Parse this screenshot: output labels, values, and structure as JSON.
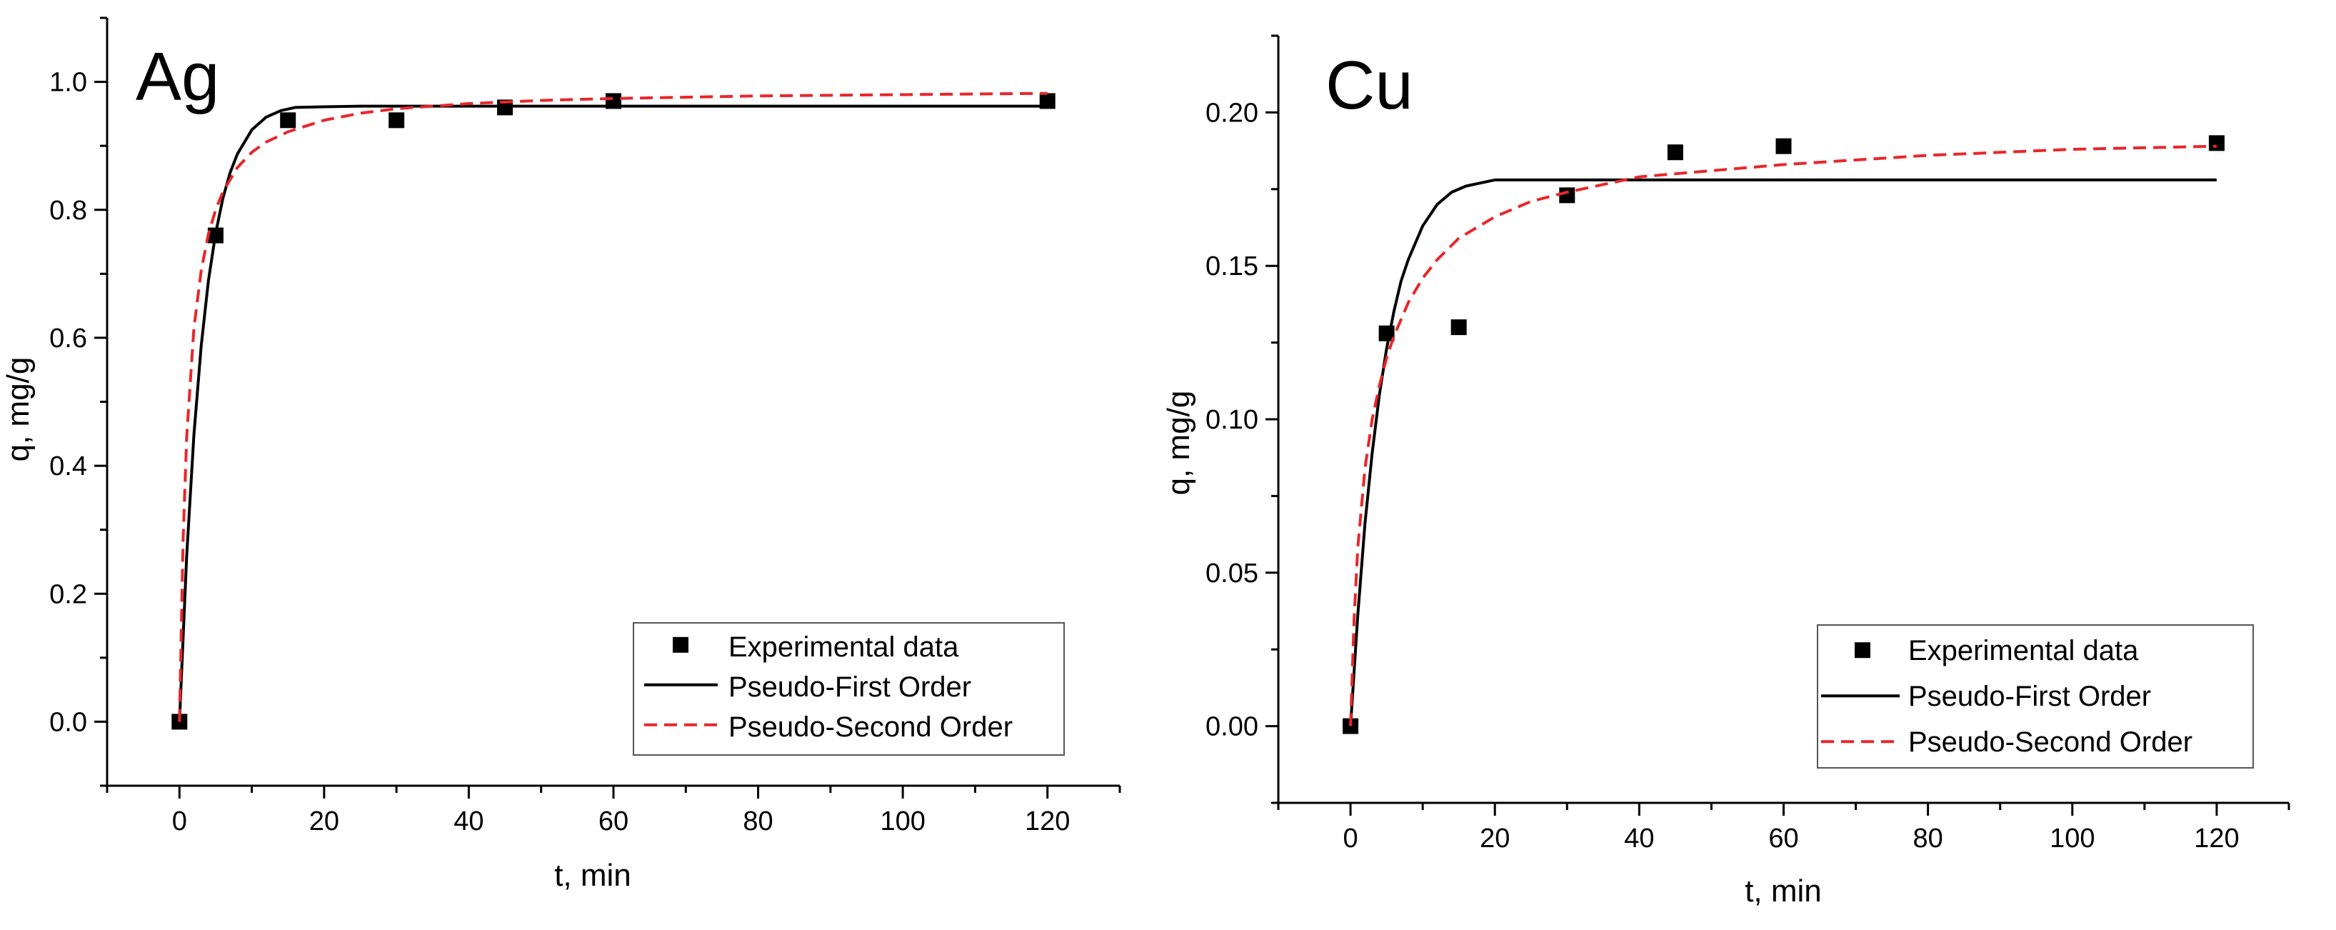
{
  "colors": {
    "experimental": "#000000",
    "first_order": "#000000",
    "second_order": "#e8262a",
    "axis": "#000000",
    "legend_border": "#555555"
  },
  "chart_data": [
    {
      "type": "scatter",
      "title": "Ag",
      "xlabel": "t, min",
      "ylabel": "q, mg/g",
      "xlim": [
        -10,
        130
      ],
      "ylim": [
        -0.1,
        1.1
      ],
      "xticks": [
        0,
        20,
        40,
        60,
        80,
        100,
        120
      ],
      "yticks": [
        0.0,
        0.2,
        0.4,
        0.6,
        0.8,
        1.0
      ],
      "ytick_decimals": 1,
      "legend": "bottom-right",
      "series": [
        {
          "name": "Experimental data",
          "kind": "markers",
          "x": [
            0,
            5,
            15,
            30,
            45,
            60,
            120
          ],
          "y": [
            0.0,
            0.76,
            0.94,
            0.94,
            0.96,
            0.97,
            0.97
          ]
        },
        {
          "name": "Pseudo-First Order",
          "kind": "solid-line",
          "x": [
            0,
            1,
            2,
            3,
            4,
            5,
            6,
            7,
            8,
            10,
            12,
            14,
            16,
            20,
            25,
            30,
            40,
            60,
            80,
            100,
            120
          ],
          "y": [
            0.0,
            0.259,
            0.448,
            0.587,
            0.689,
            0.763,
            0.818,
            0.858,
            0.887,
            0.925,
            0.945,
            0.955,
            0.96,
            0.961,
            0.962,
            0.962,
            0.962,
            0.962,
            0.962,
            0.962,
            0.962
          ]
        },
        {
          "name": "Pseudo-Second Order",
          "kind": "dashed-line",
          "x": [
            0,
            0.5,
            1,
            2,
            3,
            4,
            5,
            6,
            8,
            10,
            12,
            15,
            20,
            25,
            30,
            40,
            50,
            60,
            80,
            100,
            120
          ],
          "y": [
            0.0,
            0.285,
            0.445,
            0.615,
            0.705,
            0.762,
            0.8,
            0.828,
            0.866,
            0.89,
            0.906,
            0.922,
            0.94,
            0.951,
            0.958,
            0.966,
            0.971,
            0.974,
            0.978,
            0.98,
            0.982
          ]
        }
      ]
    },
    {
      "type": "scatter",
      "title": "Cu",
      "xlabel": "t, min",
      "ylabel": "q, mg/g",
      "xlim": [
        -10,
        130
      ],
      "ylim": [
        -0.025,
        0.225
      ],
      "xticks": [
        0,
        20,
        40,
        60,
        80,
        100,
        120
      ],
      "yticks": [
        0.0,
        0.05,
        0.1,
        0.15,
        0.2
      ],
      "ytick_decimals": 2,
      "legend": "bottom-right",
      "series": [
        {
          "name": "Experimental data",
          "kind": "markers",
          "x": [
            0,
            5,
            15,
            30,
            45,
            60,
            120
          ],
          "y": [
            0.0,
            0.128,
            0.13,
            0.173,
            0.187,
            0.189,
            0.19
          ]
        },
        {
          "name": "Pseudo-First Order",
          "kind": "solid-line",
          "x": [
            0,
            1,
            2,
            3,
            4,
            5,
            6,
            7,
            8,
            10,
            12,
            14,
            16,
            20,
            25,
            30,
            40,
            60,
            80,
            100,
            120
          ],
          "y": [
            0.0,
            0.036,
            0.066,
            0.089,
            0.108,
            0.123,
            0.135,
            0.145,
            0.152,
            0.163,
            0.17,
            0.174,
            0.176,
            0.178,
            0.178,
            0.178,
            0.178,
            0.178,
            0.178,
            0.178,
            0.178
          ]
        },
        {
          "name": "Pseudo-Second Order",
          "kind": "dashed-line",
          "x": [
            0,
            0.5,
            1,
            2,
            3,
            4,
            5,
            6,
            8,
            10,
            12,
            15,
            20,
            25,
            30,
            40,
            50,
            60,
            80,
            100,
            120
          ],
          "y": [
            0.0,
            0.035,
            0.058,
            0.084,
            0.1,
            0.111,
            0.12,
            0.127,
            0.138,
            0.146,
            0.152,
            0.159,
            0.166,
            0.171,
            0.174,
            0.179,
            0.181,
            0.183,
            0.186,
            0.188,
            0.189
          ]
        }
      ]
    }
  ]
}
